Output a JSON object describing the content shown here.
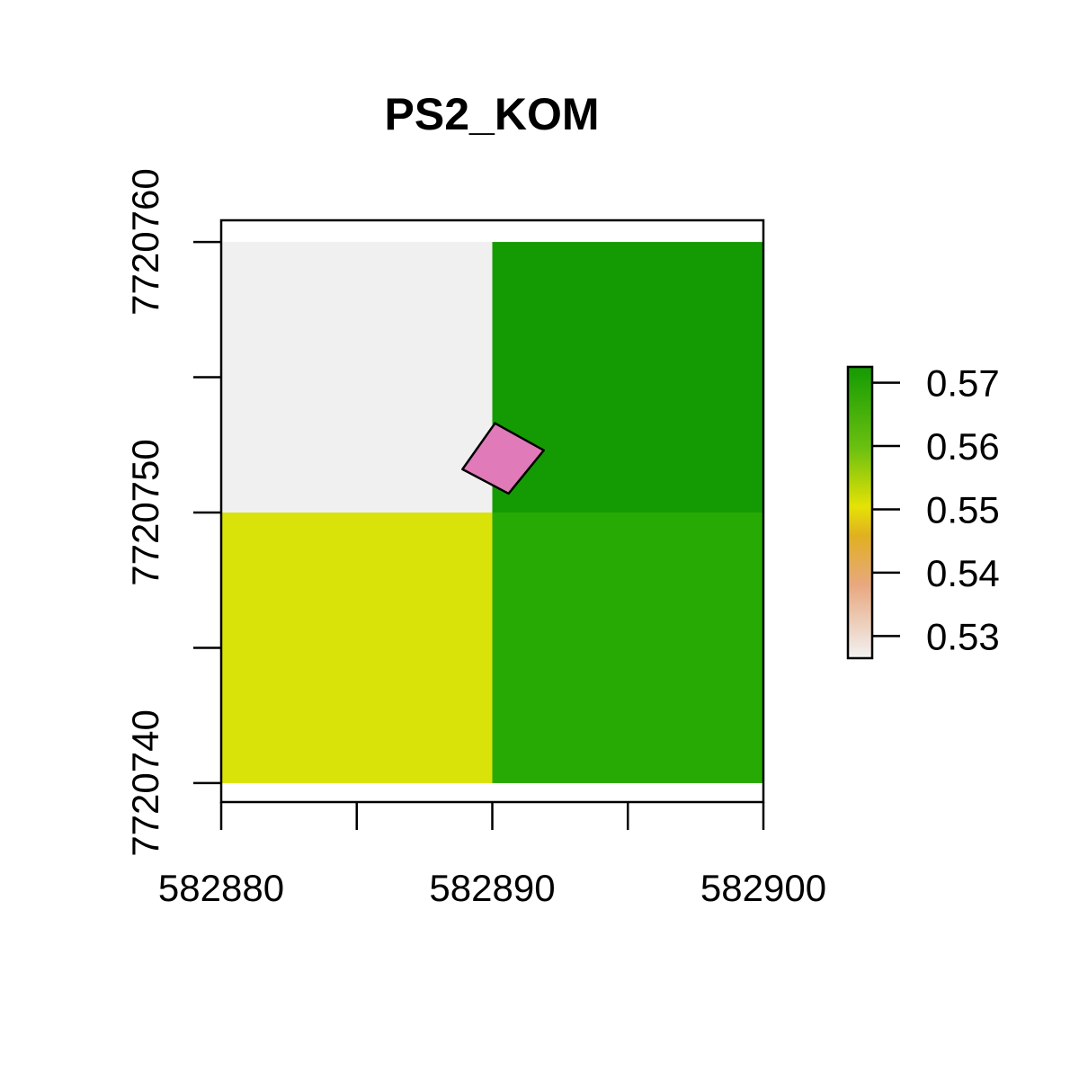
{
  "chart_data": {
    "type": "heatmap",
    "title": "PS2_KOM",
    "xlabel": "",
    "ylabel": "",
    "x_ticks": [
      582880,
      582885,
      582890,
      582895,
      582900
    ],
    "x_tick_labels": [
      "582880",
      "582890",
      "582900"
    ],
    "x_tick_label_values": [
      582880,
      582890,
      582900
    ],
    "y_ticks": [
      7720740,
      7720745,
      7720750,
      7720755,
      7720760
    ],
    "y_tick_labels": [
      "7720740",
      "7720750",
      "7720760"
    ],
    "y_tick_label_values": [
      7720740,
      7720750,
      7720760
    ],
    "xlim": [
      582880,
      582900
    ],
    "ylim": [
      7720739.3,
      7720760.8
    ],
    "raster": {
      "xmin": 582880,
      "xmax": 582900,
      "ymin": 7720740,
      "ymax": 7720760,
      "ncol": 2,
      "nrow": 2,
      "cells": [
        {
          "row": 0,
          "col": 0,
          "value": 0.527,
          "color": "#F0F0F0"
        },
        {
          "row": 0,
          "col": 1,
          "value": 0.571,
          "color": "#149B03"
        },
        {
          "row": 1,
          "col": 0,
          "value": 0.551,
          "color": "#DAE309"
        },
        {
          "row": 1,
          "col": 1,
          "value": 0.566,
          "color": "#27AA03"
        }
      ]
    },
    "polygon": {
      "fill": "#E07AB9",
      "points": [
        [
          582890.1,
          7720753.3
        ],
        [
          582891.9,
          7720752.3
        ],
        [
          582890.6,
          7720750.7
        ],
        [
          582888.9,
          7720751.6
        ]
      ]
    },
    "legend": {
      "position": "right",
      "min": 0.5265,
      "max": 0.5725,
      "ticks": [
        0.53,
        0.54,
        0.55,
        0.56,
        0.57
      ],
      "tick_labels": [
        "0.53",
        "0.54",
        "0.55",
        "0.56",
        "0.57"
      ],
      "gradient": [
        {
          "stop": 0.0,
          "color": "#F2F2F2"
        },
        {
          "stop": 0.25,
          "color": "#E8A880"
        },
        {
          "stop": 0.42,
          "color": "#E0B020"
        },
        {
          "stop": 0.52,
          "color": "#E5E206"
        },
        {
          "stop": 0.72,
          "color": "#6CC010"
        },
        {
          "stop": 1.0,
          "color": "#149B03"
        }
      ]
    }
  }
}
